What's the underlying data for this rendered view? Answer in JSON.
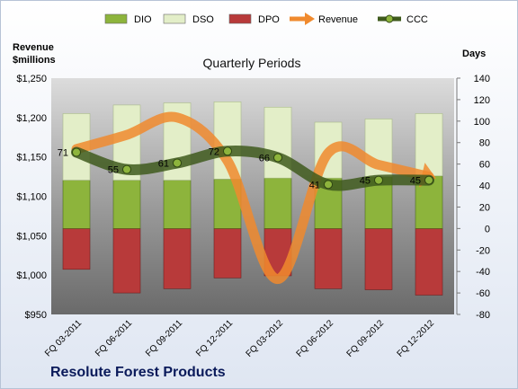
{
  "chart_data": {
    "type": "bar",
    "title": "Quarterly Periods",
    "footer_title": "Resolute Forest Products",
    "y_left_label_lines": [
      "Revenue",
      "$millions"
    ],
    "y_right_label": "Days",
    "categories": [
      "FQ 03-2011",
      "FQ 06-2011",
      "FQ 09-2011",
      "FQ 12-2011",
      "FQ 03-2012",
      "FQ 06-2012",
      "FQ 09-2012",
      "FQ 12-2012"
    ],
    "y_left_ticks": [
      "$950",
      "$1,000",
      "$1,050",
      "$1,100",
      "$1,150",
      "$1,200",
      "$1,250"
    ],
    "y_left_range": [
      950,
      1250
    ],
    "y_right_ticks": [
      "-80",
      "-60",
      "-40",
      "-20",
      "0",
      "20",
      "40",
      "60",
      "80",
      "100",
      "120",
      "140"
    ],
    "y_right_range": [
      -80,
      140
    ],
    "legend_position": "top",
    "grid": false,
    "series": [
      {
        "name": "DIO",
        "kind": "bar",
        "axis": "right",
        "color": "#8db43c",
        "values": [
          45,
          45,
          45,
          46,
          47,
          47,
          48,
          49
        ]
      },
      {
        "name": "DSO",
        "kind": "bar",
        "axis": "right",
        "color": "#e3eec8",
        "values": [
          62,
          70,
          72,
          72,
          66,
          52,
          54,
          58
        ]
      },
      {
        "name": "DPO",
        "kind": "bar",
        "axis": "right",
        "color": "#b83a3a",
        "values": [
          -38,
          -60,
          -56,
          -46,
          -44,
          -56,
          -57,
          -62
        ]
      },
      {
        "name": "Revenue",
        "kind": "line",
        "axis": "left",
        "color": "#f08a2e",
        "values": [
          1160,
          1178,
          1200,
          1145,
          995,
          1155,
          1140,
          1125
        ]
      },
      {
        "name": "CCC",
        "kind": "line",
        "axis": "right",
        "color": "#3f5a1d",
        "values": [
          71,
          55,
          61,
          72,
          66,
          41,
          45,
          45
        ]
      }
    ],
    "data_labels": [
      "71",
      "55",
      "61",
      "72",
      "66",
      "41",
      "45",
      "45"
    ]
  }
}
